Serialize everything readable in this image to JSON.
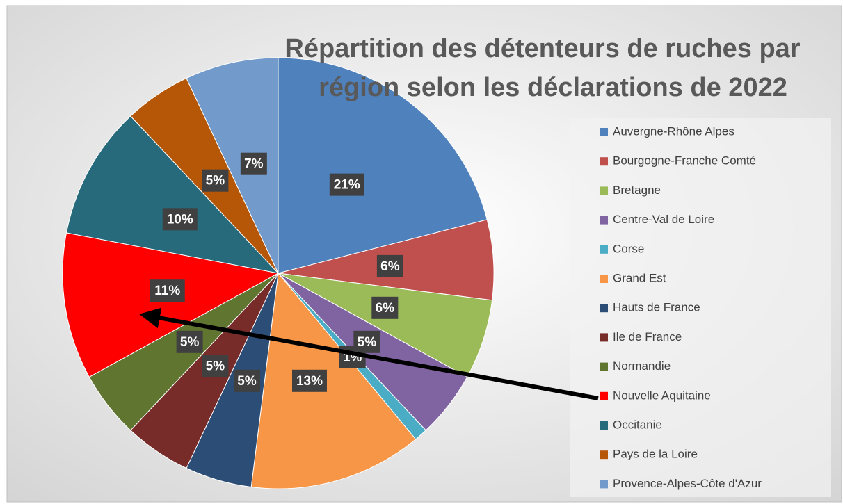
{
  "chart_data": {
    "type": "pie",
    "title": "Répartition des détenteurs de ruches par région selon les déclarations de 2022",
    "categories": [
      "Auvergne-Rhône Alpes",
      "Bourgogne-Franche Comté",
      "Bretagne",
      "Centre-Val de Loire",
      "Corse",
      "Grand Est",
      "Hauts de France",
      "Ile de France",
      "Normandie",
      "Nouvelle Aquitaine",
      "Occitanie",
      "Pays de la Loire",
      "Provence-Alpes-Côte d'Azur"
    ],
    "values": [
      21,
      6,
      6,
      5,
      1,
      13,
      5,
      5,
      5,
      11,
      10,
      5,
      7
    ],
    "value_labels": [
      "21%",
      "6%",
      "6%",
      "5%",
      "1%",
      "13%",
      "5%",
      "5%",
      "5%",
      "11%",
      "10%",
      "5%",
      "7%"
    ],
    "colors": [
      "#4f81bd",
      "#c0504d",
      "#9bbb59",
      "#8064a2",
      "#4bacc6",
      "#f79646",
      "#2c4d75",
      "#772c2a",
      "#5f7530",
      "#ff0000",
      "#276a7c",
      "#b65708",
      "#729aca"
    ],
    "legend": "right"
  }
}
